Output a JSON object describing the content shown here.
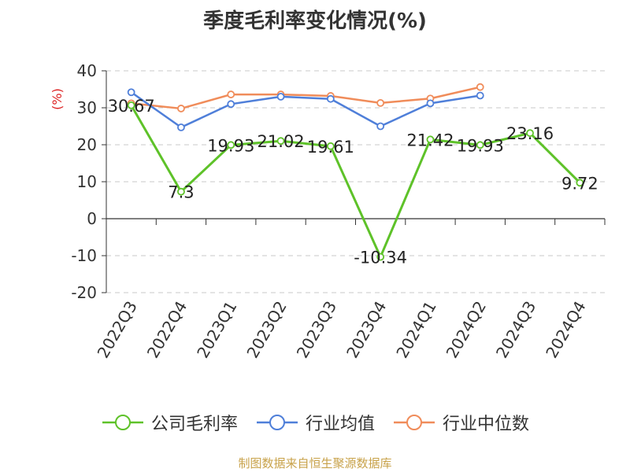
{
  "chart_data": {
    "type": "line",
    "title": "季度毛利率变化情况(%)",
    "ylabel": "(%)",
    "xlabel": "",
    "ylim": [
      -20,
      40
    ],
    "yticks": [
      -20,
      -10,
      0,
      10,
      20,
      30,
      40
    ],
    "grid": true,
    "legend_position": "bottom",
    "categories": [
      "2022Q3",
      "2022Q4",
      "2023Q1",
      "2023Q2",
      "2023Q3",
      "2023Q4",
      "2024Q1",
      "2024Q2",
      "2024Q3",
      "2024Q4"
    ],
    "series": [
      {
        "name": "公司毛利率",
        "color": "#5ec229",
        "values": [
          30.67,
          7.3,
          19.93,
          21.02,
          19.61,
          -10.34,
          21.42,
          19.93,
          23.16,
          9.72
        ],
        "labels": [
          "30.67",
          "7.3",
          "19.93",
          "21.02",
          "19.61",
          "-10.34",
          "21.42",
          "19.93",
          "23.16",
          "9.72"
        ]
      },
      {
        "name": "行业均值",
        "color": "#4f7fd9",
        "values": [
          34.2,
          24.7,
          31.0,
          33.0,
          32.4,
          25.0,
          31.2,
          33.3,
          null,
          null
        ]
      },
      {
        "name": "行业中位数",
        "color": "#f08c5a",
        "values": [
          31.2,
          29.8,
          33.6,
          33.6,
          33.2,
          31.3,
          32.5,
          35.6,
          null,
          null
        ]
      }
    ]
  },
  "source_note": "制图数据来自恒生聚源数据库"
}
